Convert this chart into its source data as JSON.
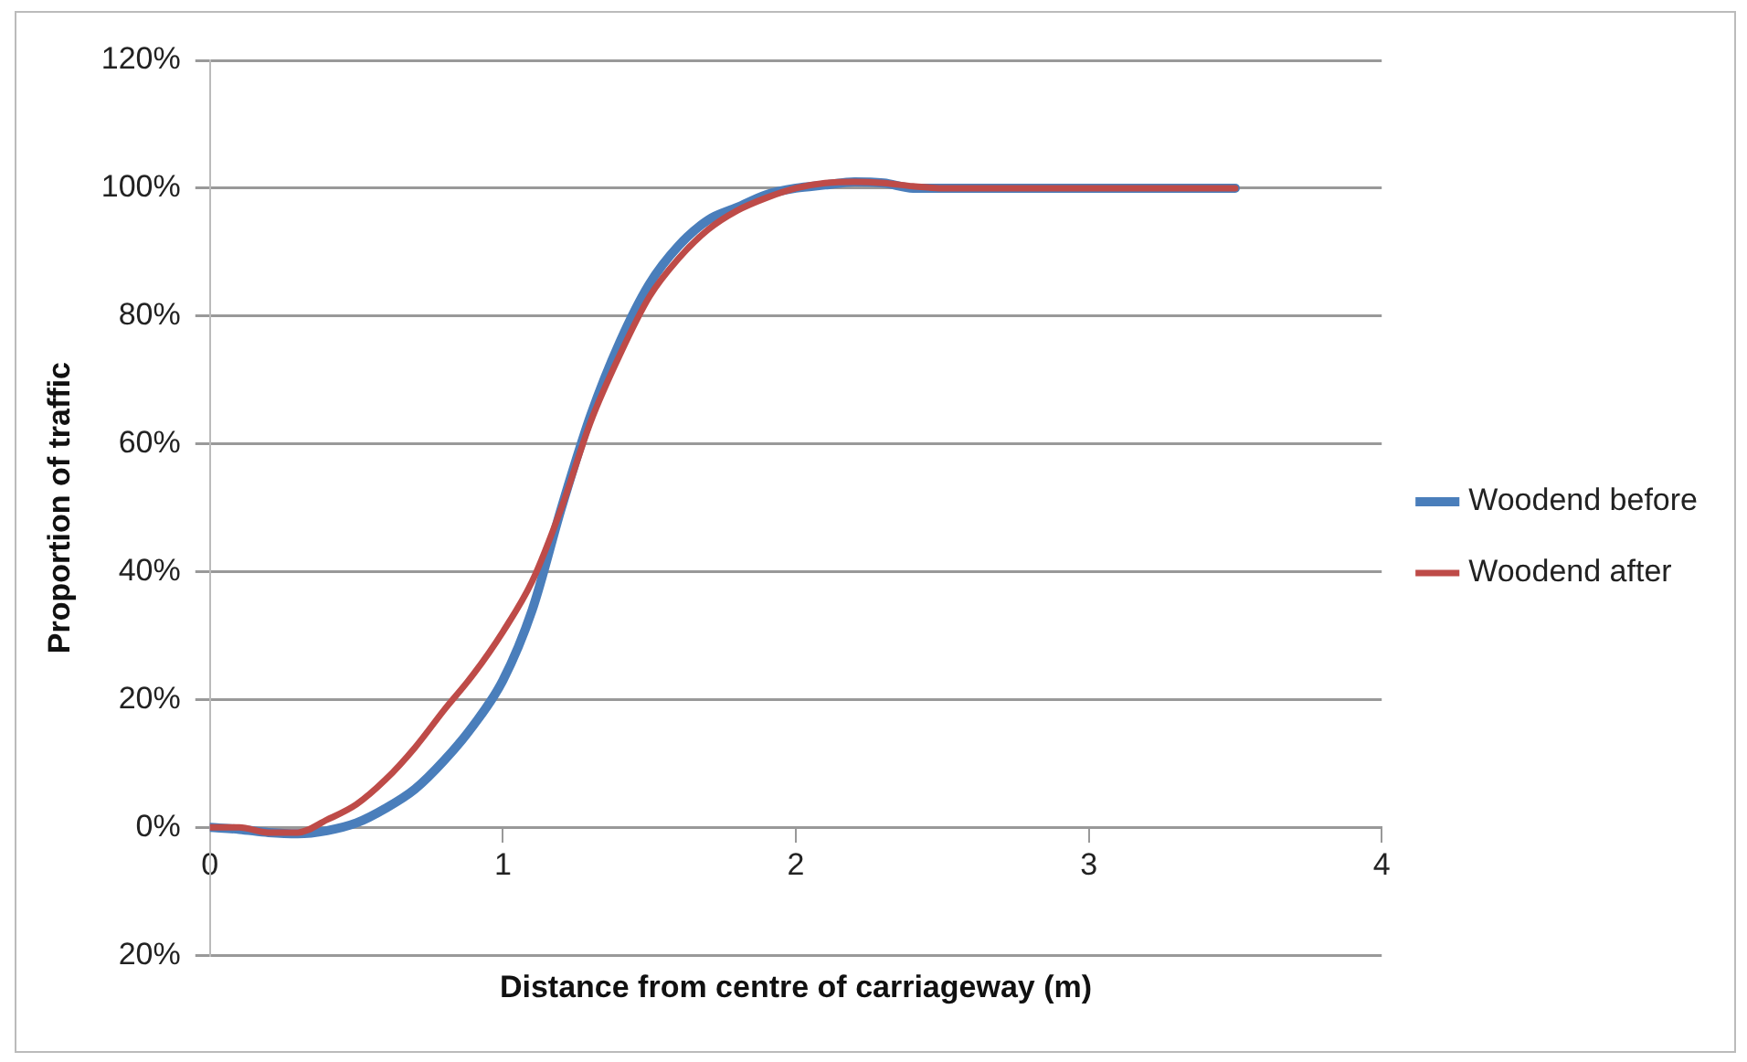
{
  "chart_data": {
    "type": "line",
    "xlabel": "Distance from centre of carriageway (m)",
    "ylabel": "Proportion of traffic",
    "xlim": [
      0,
      4
    ],
    "xticks": [
      0,
      1,
      2,
      3,
      4
    ],
    "ylim": [
      -20,
      120
    ],
    "yticks": [
      {
        "value": -20,
        "label": "20%"
      },
      {
        "value": 0,
        "label": "0%"
      },
      {
        "value": 20,
        "label": "20%"
      },
      {
        "value": 40,
        "label": "40%"
      },
      {
        "value": 60,
        "label": "60%"
      },
      {
        "value": 80,
        "label": "80%"
      },
      {
        "value": 100,
        "label": "100%"
      },
      {
        "value": 120,
        "label": "120%"
      }
    ],
    "x": [
      0,
      0.1,
      0.2,
      0.3,
      0.4,
      0.5,
      0.6,
      0.7,
      0.8,
      0.9,
      1.0,
      1.1,
      1.2,
      1.3,
      1.4,
      1.5,
      1.6,
      1.7,
      1.8,
      1.9,
      2.0,
      2.1,
      2.2,
      2.3,
      2.4,
      2.5,
      3.0,
      3.5
    ],
    "series": [
      {
        "name": "Woodend before",
        "color": "#4a7ebb",
        "values": [
          0,
          -0.3,
          -0.8,
          -1,
          -0.5,
          0.7,
          3,
          6,
          10.5,
          16,
          23,
          34,
          50,
          64.5,
          76,
          85,
          91,
          95,
          97,
          99,
          100,
          100.5,
          101,
          100.8,
          100,
          100,
          100,
          100
        ]
      },
      {
        "name": "Woodend after",
        "color": "#be4b48",
        "values": [
          0,
          0,
          -0.8,
          -0.8,
          1.2,
          3.6,
          7.5,
          12.5,
          18.4,
          24,
          30.6,
          38.5,
          50,
          63.5,
          74,
          83,
          89,
          93.5,
          96.5,
          98.5,
          100,
          100.8,
          101,
          100.8,
          100.3,
          100,
          100,
          100
        ]
      }
    ],
    "grid": "y",
    "legend": "right",
    "marker": "none",
    "line_style": "solid"
  }
}
